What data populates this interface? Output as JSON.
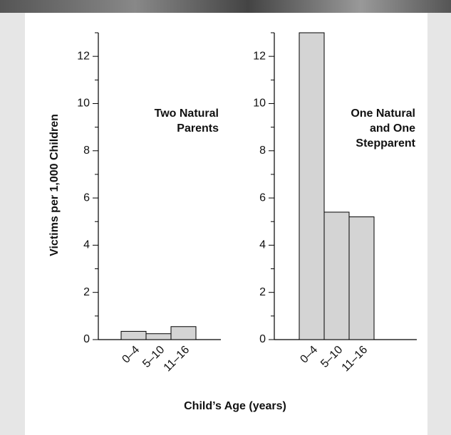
{
  "chart_data": [
    {
      "type": "bar",
      "categories": [
        "0–4",
        "5–10",
        "11–16"
      ],
      "values": [
        0.35,
        0.25,
        0.55
      ],
      "color": "#d4d4d4",
      "annotation": [
        "Two Natural",
        "Parents"
      ],
      "ylim": [
        0,
        13
      ],
      "yticks": [
        0,
        2,
        4,
        6,
        8,
        10,
        12
      ],
      "minor_yticks": [
        1,
        3,
        5,
        7,
        9,
        11,
        13
      ]
    },
    {
      "type": "bar",
      "categories": [
        "0–4",
        "5–10",
        "11–16"
      ],
      "values": [
        13,
        5.4,
        5.2
      ],
      "color": "#d4d4d4",
      "annotation": [
        "One Natural",
        "and One",
        "Stepparent"
      ],
      "ylim": [
        0,
        13
      ],
      "yticks": [
        0,
        2,
        4,
        6,
        8,
        10,
        12
      ],
      "minor_yticks": [
        1,
        3,
        5,
        7,
        9,
        11,
        13
      ]
    }
  ],
  "y_label": "Victims per 1,000 Children",
  "x_label": "Child’s Age (years)"
}
